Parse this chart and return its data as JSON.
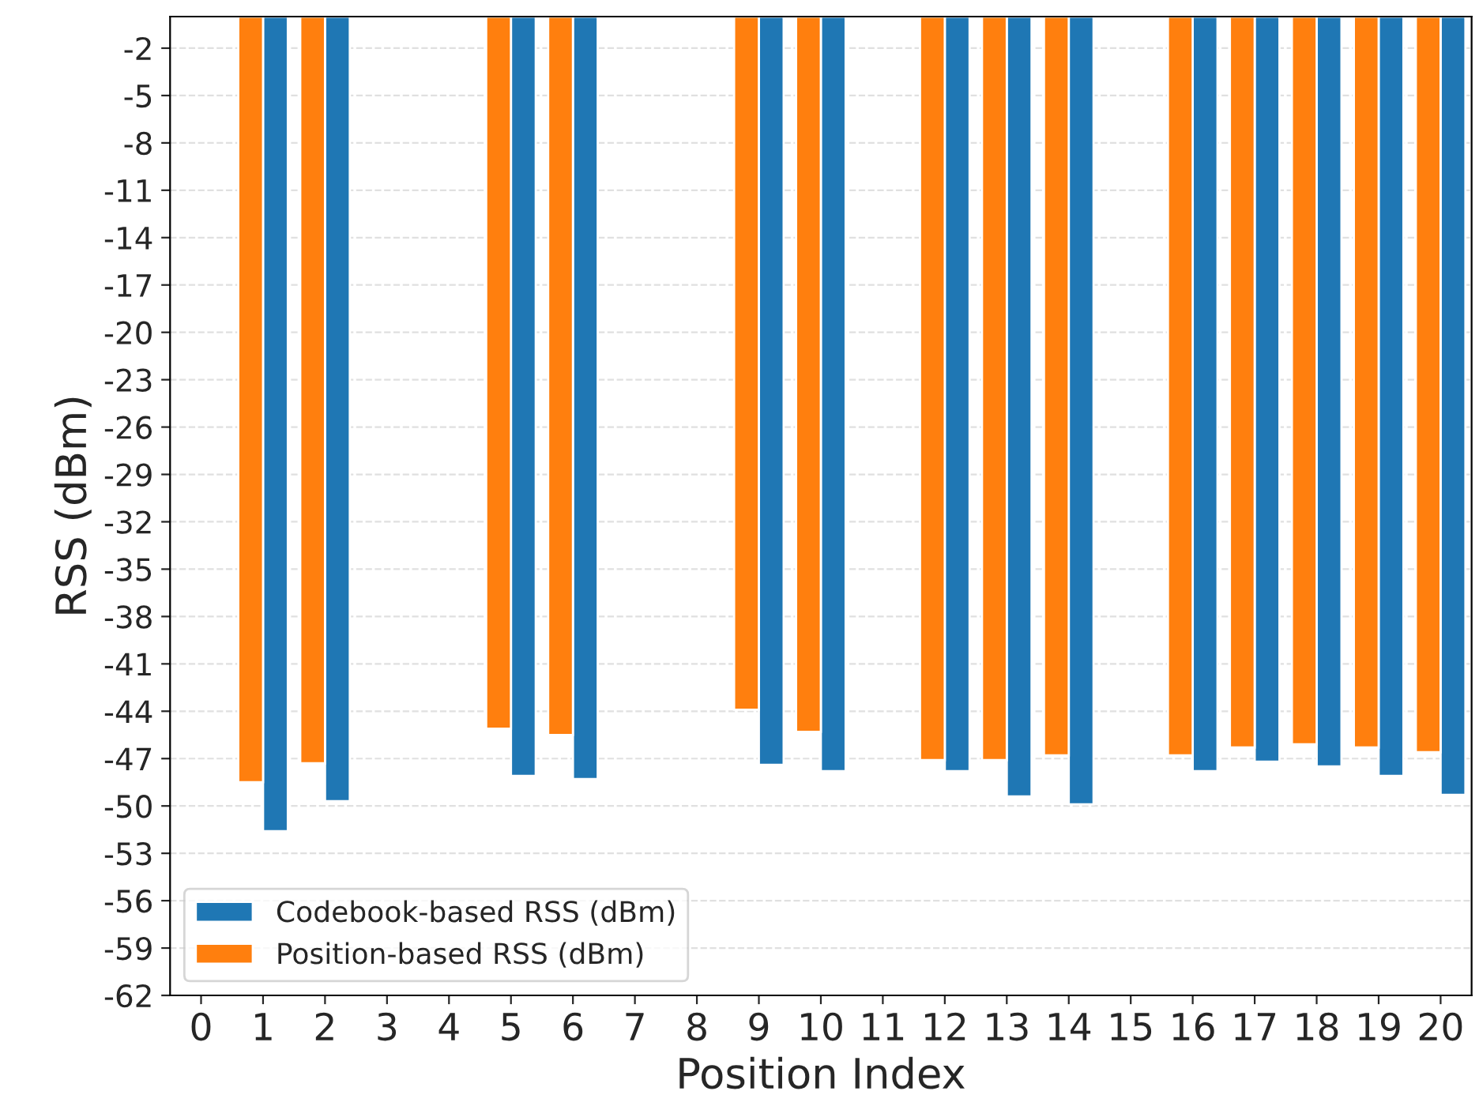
{
  "chart_data": {
    "type": "bar",
    "xlabel": "Position Index",
    "ylabel": "RSS (dBm)",
    "categories": [
      "0",
      "1",
      "2",
      "3",
      "4",
      "5",
      "6",
      "7",
      "8",
      "9",
      "10",
      "11",
      "12",
      "13",
      "14",
      "15",
      "16",
      "17",
      "18",
      "19",
      "20"
    ],
    "series": [
      {
        "name": "Codebook-based RSS (dBm)",
        "color": "#1f77b4",
        "values": [
          null,
          -51.6,
          -49.7,
          null,
          null,
          -48.1,
          -48.3,
          null,
          null,
          -47.4,
          -47.8,
          null,
          -47.8,
          -49.4,
          -49.9,
          null,
          -47.8,
          -47.2,
          -47.5,
          -48.1,
          -49.3
        ]
      },
      {
        "name": "Position-based RSS (dBm)",
        "color": "#ff7f0e",
        "values": [
          null,
          -48.5,
          -47.3,
          null,
          null,
          -45.1,
          -45.5,
          null,
          null,
          -43.9,
          -45.3,
          null,
          -47.1,
          -47.1,
          -46.8,
          null,
          -46.8,
          -46.3,
          -46.1,
          -46.3,
          -46.6
        ]
      }
    ],
    "ylim": [
      -62,
      0
    ],
    "yticks": [
      -2,
      -5,
      -8,
      -11,
      -14,
      -17,
      -20,
      -23,
      -26,
      -29,
      -32,
      -35,
      -38,
      -41,
      -44,
      -47,
      -50,
      -53,
      -56,
      -59,
      -62
    ],
    "grid": "y",
    "legend": "bottom left"
  }
}
